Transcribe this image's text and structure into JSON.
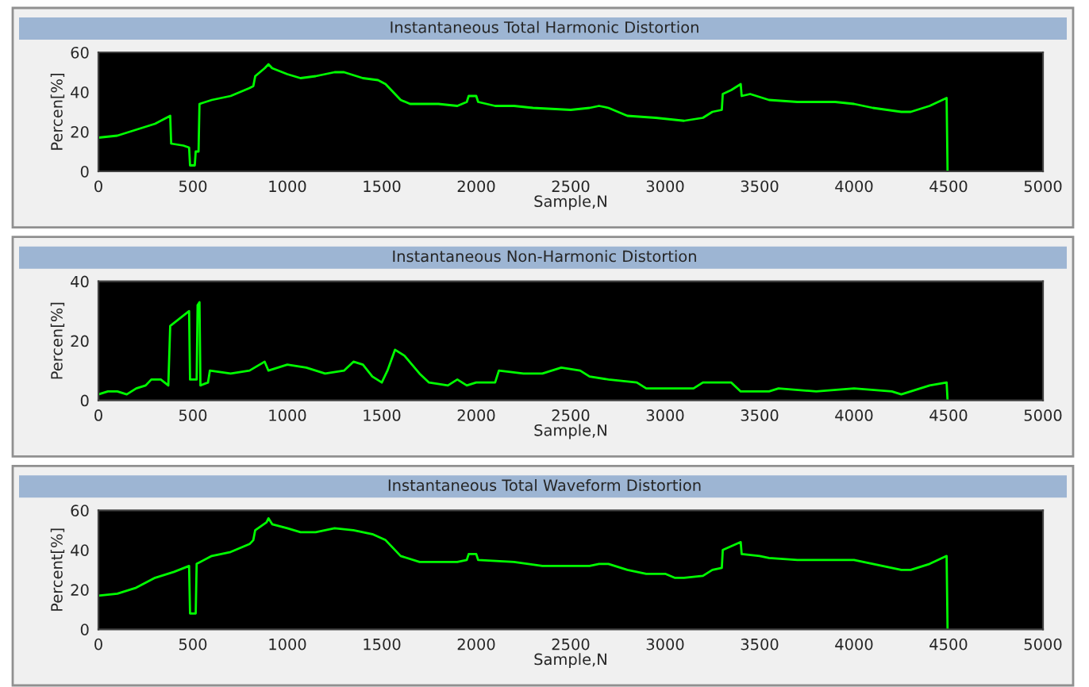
{
  "chart_data": [
    {
      "type": "line",
      "title": "Instantaneous Total Harmonic Distortion",
      "xlabel": "Sample,N",
      "ylabel": "Percen[%]",
      "xlim": [
        0,
        5000
      ],
      "xticks": [
        0,
        500,
        1000,
        1500,
        2000,
        2500,
        3000,
        3500,
        4000,
        4500,
        5000
      ],
      "ylim": [
        0,
        60
      ],
      "yticks": [
        0,
        20,
        40,
        60
      ],
      "grid": false,
      "series": [
        {
          "color": "#00ff00",
          "x": [
            0,
            100,
            200,
            300,
            380,
            385,
            450,
            480,
            485,
            510,
            515,
            530,
            535,
            600,
            700,
            800,
            820,
            830,
            880,
            900,
            920,
            1000,
            1070,
            1150,
            1250,
            1300,
            1400,
            1480,
            1520,
            1600,
            1650,
            1800,
            1900,
            1950,
            1960,
            2000,
            2010,
            2100,
            2200,
            2300,
            2500,
            2600,
            2650,
            2700,
            2800,
            2950,
            3050,
            3100,
            3200,
            3250,
            3300,
            3305,
            3350,
            3400,
            3405,
            3450,
            3550,
            3700,
            3900,
            4000,
            4100,
            4250,
            4300,
            4400,
            4490,
            4495
          ],
          "values": [
            17,
            18,
            21,
            24,
            28,
            14,
            13,
            12,
            3,
            3,
            10,
            10,
            34,
            36,
            38,
            42,
            43,
            48,
            52,
            54,
            52,
            49,
            47,
            48,
            50,
            50,
            47,
            46,
            44,
            36,
            34,
            34,
            33,
            35,
            38,
            38,
            35,
            33,
            33,
            32,
            31,
            32,
            33,
            32,
            28,
            27,
            26,
            25.5,
            27,
            30,
            31,
            39,
            41,
            44,
            38,
            39,
            36,
            35,
            35,
            34,
            32,
            30,
            30,
            33,
            37,
            0
          ]
        }
      ]
    },
    {
      "type": "line",
      "title": "Instantaneous Non-Harmonic Distortion",
      "xlabel": "Sample,N",
      "ylabel": "Percen[%]",
      "xlim": [
        0,
        5000
      ],
      "xticks": [
        0,
        500,
        1000,
        1500,
        2000,
        2500,
        3000,
        3500,
        4000,
        4500,
        5000
      ],
      "ylim": [
        0,
        40
      ],
      "yticks": [
        0,
        20,
        40
      ],
      "grid": false,
      "series": [
        {
          "color": "#00ff00",
          "x": [
            0,
            50,
            100,
            150,
            200,
            250,
            280,
            330,
            370,
            380,
            480,
            485,
            520,
            525,
            535,
            540,
            580,
            590,
            700,
            800,
            880,
            900,
            1000,
            1100,
            1200,
            1300,
            1350,
            1400,
            1450,
            1500,
            1530,
            1570,
            1620,
            1700,
            1750,
            1850,
            1900,
            1950,
            2000,
            2100,
            2120,
            2250,
            2350,
            2450,
            2550,
            2600,
            2700,
            2850,
            2900,
            3000,
            3150,
            3200,
            3350,
            3400,
            3550,
            3600,
            3800,
            4000,
            4200,
            4250,
            4300,
            4400,
            4490,
            4495
          ],
          "values": [
            2,
            3,
            3,
            2,
            4,
            5,
            7,
            7,
            5,
            25,
            30,
            7,
            7,
            32,
            33,
            5,
            6,
            10,
            9,
            10,
            13,
            10,
            12,
            11,
            9,
            10,
            13,
            12,
            8,
            6,
            10,
            17,
            15,
            9,
            6,
            5,
            7,
            5,
            6,
            6,
            10,
            9,
            9,
            11,
            10,
            8,
            7,
            6,
            4,
            4,
            4,
            6,
            6,
            3,
            3,
            4,
            3,
            4,
            3,
            2,
            3,
            5,
            6,
            0
          ]
        }
      ]
    },
    {
      "type": "line",
      "title": "Instantaneous Total Waveform Distortion",
      "xlabel": "Sample,N",
      "ylabel": "Percent[%]",
      "xlim": [
        0,
        5000
      ],
      "xticks": [
        0,
        500,
        1000,
        1500,
        2000,
        2500,
        3000,
        3500,
        4000,
        4500,
        5000
      ],
      "ylim": [
        0,
        60
      ],
      "yticks": [
        0,
        20,
        40,
        60
      ],
      "grid": false,
      "series": [
        {
          "color": "#00ff00",
          "x": [
            0,
            100,
            200,
            300,
            400,
            480,
            485,
            515,
            520,
            600,
            700,
            800,
            820,
            830,
            890,
            900,
            920,
            1000,
            1070,
            1150,
            1250,
            1350,
            1450,
            1520,
            1600,
            1700,
            1900,
            1950,
            1960,
            2000,
            2010,
            2200,
            2350,
            2500,
            2600,
            2650,
            2700,
            2800,
            2900,
            3000,
            3050,
            3100,
            3200,
            3250,
            3300,
            3305,
            3400,
            3405,
            3500,
            3550,
            3700,
            3900,
            4000,
            4100,
            4250,
            4300,
            4400,
            4490,
            4495
          ],
          "values": [
            17,
            18,
            21,
            26,
            29,
            32,
            8,
            8,
            33,
            37,
            39,
            43,
            45,
            50,
            54,
            56,
            53,
            51,
            49,
            49,
            51,
            50,
            48,
            45,
            37,
            34,
            34,
            35,
            38,
            38,
            35,
            34,
            32,
            32,
            32,
            33,
            33,
            30,
            28,
            28,
            26,
            26,
            27,
            30,
            31,
            40,
            44,
            38,
            37,
            36,
            35,
            35,
            35,
            33,
            30,
            30,
            33,
            37,
            0
          ]
        }
      ]
    }
  ]
}
